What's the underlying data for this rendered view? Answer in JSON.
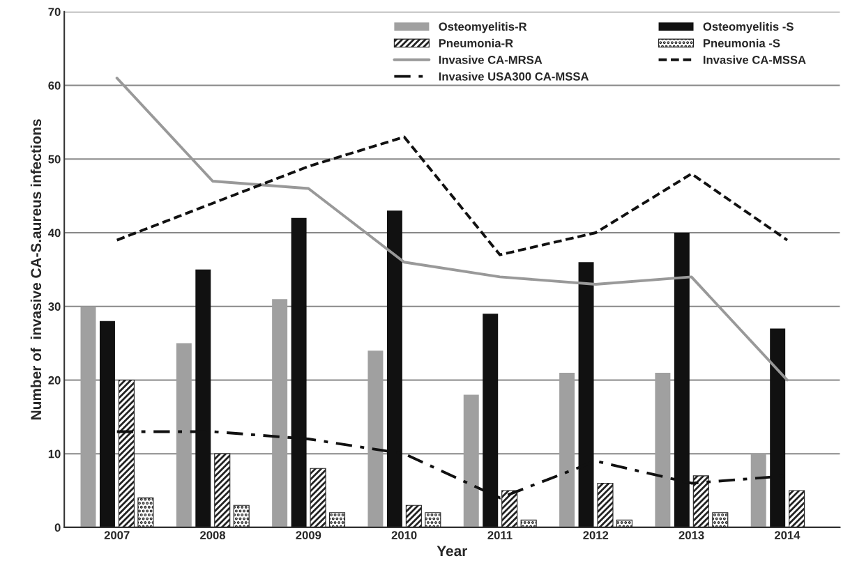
{
  "chart_data": {
    "type": "bar",
    "xlabel": "Year",
    "ylabel": "Number of  invasive CA-S.aureus infections",
    "categories": [
      "2007",
      "2008",
      "2009",
      "2010",
      "2011",
      "2012",
      "2013",
      "2014"
    ],
    "series": [
      {
        "name": "Osteomyelitis-R",
        "color": "#a0a0a0",
        "values": [
          30,
          25,
          31,
          24,
          18,
          21,
          21,
          10
        ]
      },
      {
        "name": "Osteomyelitis -S",
        "color": "#111111",
        "values": [
          28,
          35,
          42,
          43,
          29,
          36,
          40,
          27
        ]
      },
      {
        "name": "Pneumonia-R",
        "color": "#222222",
        "values": [
          20,
          10,
          8,
          3,
          5,
          6,
          7,
          5
        ]
      },
      {
        "name": "Pneumonia -S",
        "color": "#222222",
        "values": [
          4,
          3,
          2,
          2,
          1,
          1,
          2,
          null
        ]
      },
      {
        "name": "Invasive CA-MRSA",
        "type": "line",
        "color": "#999999",
        "line_style": "solid",
        "values": [
          61,
          47,
          46,
          36,
          34,
          33,
          34,
          20
        ]
      },
      {
        "name": "Invasive CA-MSSA",
        "type": "line",
        "color": "#111111",
        "line_style": "dashed",
        "values": [
          39,
          44,
          49,
          53,
          37,
          40,
          48,
          39
        ]
      },
      {
        "name": "Invasive USA300 CA-MSSA",
        "type": "line",
        "color": "#111111",
        "line_style": "dashdot",
        "values": [
          13,
          13,
          12,
          10,
          4,
          9,
          6,
          7
        ]
      }
    ],
    "ylim": [
      0,
      70
    ],
    "yticks": [
      0,
      10,
      20,
      30,
      40,
      50,
      60,
      70
    ],
    "grid": "y",
    "legend": "top right",
    "marker": "none"
  }
}
